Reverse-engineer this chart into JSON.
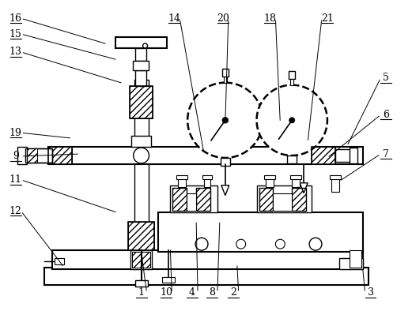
{
  "background_color": "#ffffff",
  "line_color": "#000000",
  "figsize": [
    5.21,
    3.94
  ],
  "dpi": 100,
  "labels": [
    [
      "16",
      18,
      22,
      135,
      55
    ],
    [
      "15",
      18,
      42,
      148,
      75
    ],
    [
      "13",
      18,
      65,
      155,
      105
    ],
    [
      "19",
      18,
      168,
      90,
      175
    ],
    [
      "9",
      18,
      198,
      100,
      195
    ],
    [
      "11",
      18,
      228,
      148,
      270
    ],
    [
      "12",
      18,
      268,
      80,
      340
    ],
    [
      "14",
      220,
      22,
      258,
      195
    ],
    [
      "20",
      282,
      22,
      285,
      155
    ],
    [
      "18",
      342,
      22,
      355,
      155
    ],
    [
      "21",
      415,
      22,
      390,
      180
    ],
    [
      "5",
      490,
      98,
      440,
      185
    ],
    [
      "6",
      490,
      145,
      415,
      200
    ],
    [
      "7",
      490,
      195,
      430,
      230
    ],
    [
      "1",
      178,
      372,
      178,
      320
    ],
    [
      "10",
      210,
      372,
      215,
      315
    ],
    [
      "4",
      243,
      372,
      248,
      280
    ],
    [
      "8",
      268,
      372,
      278,
      280
    ],
    [
      "2",
      295,
      372,
      300,
      335
    ],
    [
      "3",
      470,
      372,
      460,
      340
    ]
  ]
}
